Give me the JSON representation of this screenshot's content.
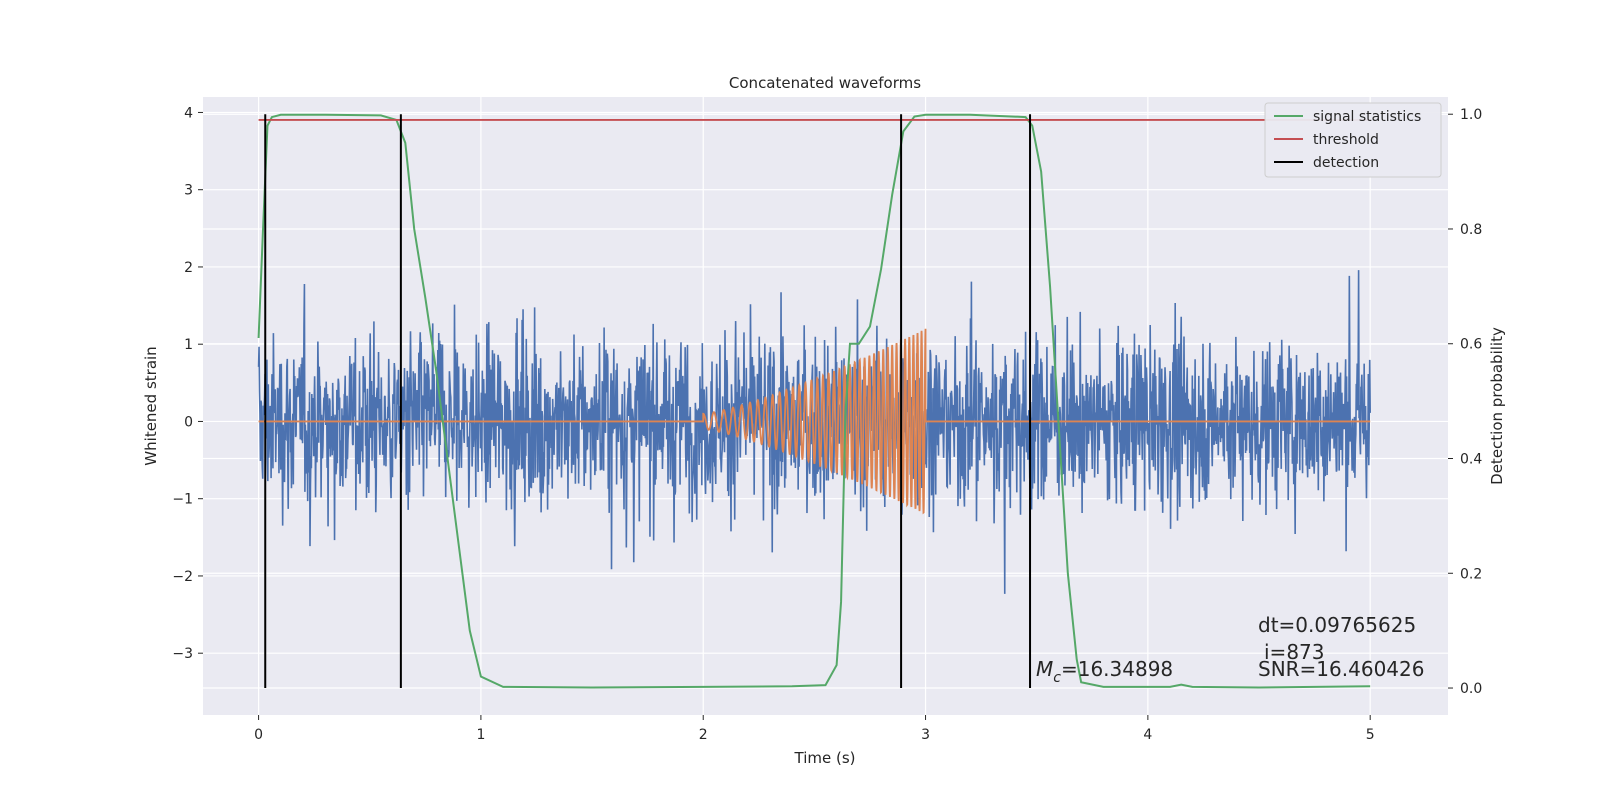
{
  "chart_data": {
    "type": "line",
    "title": "Concatenated waveforms",
    "xlabel": "Time (s)",
    "ylabel": "Whitened strain",
    "ylabel_right": "Detection probability",
    "xlim": [
      -0.25,
      5.35
    ],
    "ylim": [
      -3.8,
      4.2
    ],
    "ylim_right": [
      -0.047,
      1.03
    ],
    "x_ticks": [
      0,
      1,
      2,
      3,
      4,
      5
    ],
    "y_ticks": [
      -3,
      -2,
      -1,
      0,
      1,
      2,
      3,
      4
    ],
    "y_ticks_right": [
      0.0,
      0.2,
      0.4,
      0.6,
      0.8,
      1.0
    ],
    "x_tick_labels": [
      "0",
      "1",
      "2",
      "3",
      "4",
      "5"
    ],
    "y_tick_labels": [
      "−3",
      "−2",
      "−1",
      "0",
      "1",
      "2",
      "3",
      "4"
    ],
    "y_tick_labels_right": [
      "0.0",
      "0.2",
      "0.4",
      "0.6",
      "0.8",
      "1.0"
    ],
    "grid": true,
    "legend_position": "top-right",
    "colors": {
      "strain": "#4c72b0",
      "template": "#dd8452",
      "statistics": "#55a868",
      "threshold": "#c44e52",
      "detection": "#000000",
      "background": "#eaeaf2",
      "grid": "#ffffff"
    },
    "series": [
      {
        "name": "whitened strain",
        "role": "strain",
        "x_range": [
          0,
          5
        ],
        "amplitude_range": [
          -3.3,
          3.3
        ]
      },
      {
        "name": "injected waveform",
        "role": "template",
        "x_range": [
          2,
          3
        ],
        "amplitude_start": 0.1,
        "amplitude_end": 1.2
      },
      {
        "name": "signal statistics",
        "role": "statistics",
        "axis": "right",
        "x": [
          0,
          0.02,
          0.04,
          0.06,
          0.1,
          0.3,
          0.55,
          0.62,
          0.66,
          0.7,
          0.75,
          0.8,
          0.85,
          0.9,
          0.95,
          1.0,
          1.1,
          1.5,
          2.0,
          2.4,
          2.55,
          2.6,
          2.62,
          2.64,
          2.66,
          2.7,
          2.75,
          2.8,
          2.85,
          2.9,
          2.95,
          3.0,
          3.2,
          3.45,
          3.48,
          3.52,
          3.56,
          3.6,
          3.64,
          3.68,
          3.7,
          3.8,
          4.1,
          4.15,
          4.2,
          4.5,
          5.0
        ],
        "y": [
          0.61,
          0.8,
          0.98,
          0.995,
          0.999,
          0.999,
          0.998,
          0.99,
          0.95,
          0.8,
          0.68,
          0.55,
          0.4,
          0.25,
          0.1,
          0.02,
          0.002,
          0.001,
          0.002,
          0.003,
          0.005,
          0.04,
          0.15,
          0.48,
          0.6,
          0.6,
          0.63,
          0.73,
          0.86,
          0.97,
          0.996,
          0.999,
          0.999,
          0.995,
          0.98,
          0.9,
          0.7,
          0.45,
          0.2,
          0.05,
          0.01,
          0.002,
          0.002,
          0.006,
          0.002,
          0.001,
          0.003
        ]
      },
      {
        "name": "threshold",
        "role": "threshold",
        "axis": "right",
        "x": [
          0,
          5
        ],
        "y": [
          0.99,
          0.99
        ]
      },
      {
        "name": "detection",
        "role": "detection",
        "axis": "right",
        "x": [
          0.03,
          0.64,
          2.89,
          3.47
        ],
        "y_range": [
          0.0,
          1.0
        ]
      }
    ],
    "legend": [
      "signal statistics",
      "threshold",
      "detection"
    ],
    "annotations": {
      "mc_symbol": "M",
      "mc_sub": "c",
      "mc_value": "=16.34898",
      "dt": "dt=0.09765625",
      "i": "i=873",
      "snr": "SNR=16.460426"
    }
  }
}
